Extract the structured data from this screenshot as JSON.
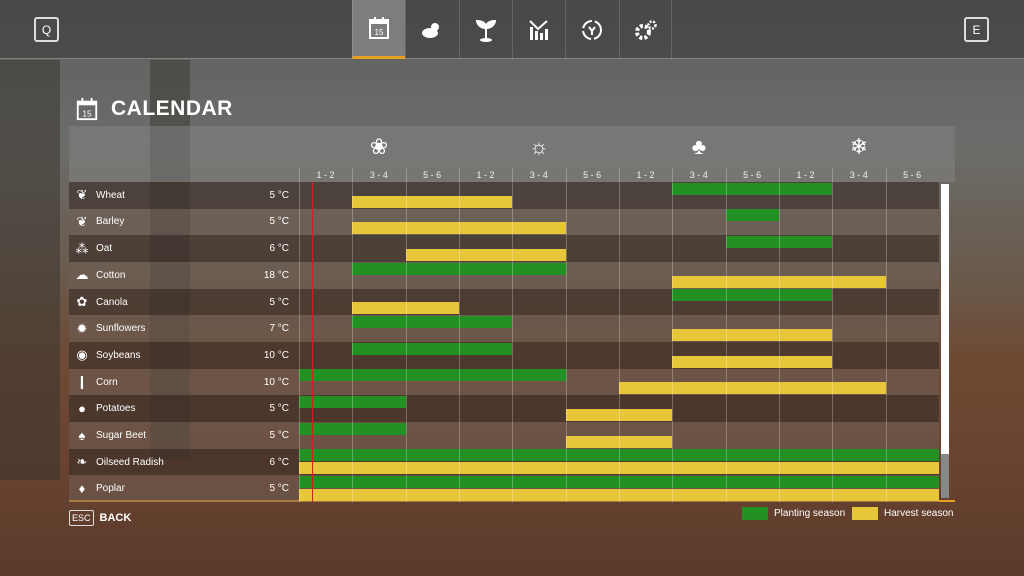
{
  "topbar": {
    "left_key": "Q",
    "right_key": "E",
    "tabs": [
      {
        "name": "calendar",
        "day": "15",
        "active": true
      },
      {
        "name": "weather"
      },
      {
        "name": "crops"
      },
      {
        "name": "prices"
      },
      {
        "name": "cycle"
      },
      {
        "name": "settings"
      }
    ]
  },
  "title": {
    "label": "CALENDAR",
    "day": "15"
  },
  "seasons": [
    {
      "name": "spring",
      "icon": "❀"
    },
    {
      "name": "summer",
      "icon": "☼"
    },
    {
      "name": "autumn",
      "icon": "♣"
    },
    {
      "name": "winter",
      "icon": "❄"
    }
  ],
  "periods": [
    "1 - 2",
    "3 - 4",
    "5 - 6",
    "1 - 2",
    "3 - 4",
    "5 - 6",
    "1 - 2",
    "3 - 4",
    "5 - 6",
    "1 - 2",
    "3 - 4",
    "5 - 6"
  ],
  "current_period": 0.25,
  "colors": {
    "planting": "#229022",
    "harvest": "#e8c63a"
  },
  "crops": [
    {
      "name": "Wheat",
      "temp": "5 °C",
      "icon": "❦",
      "planting": [
        [
          7,
          10
        ]
      ],
      "harvest": [
        [
          1,
          4
        ]
      ]
    },
    {
      "name": "Barley",
      "temp": "5 °C",
      "icon": "❦",
      "planting": [
        [
          8,
          9
        ]
      ],
      "harvest": [
        [
          1,
          5
        ]
      ]
    },
    {
      "name": "Oat",
      "temp": "6 °C",
      "icon": "⁂",
      "planting": [
        [
          8,
          10
        ]
      ],
      "harvest": [
        [
          2,
          5
        ]
      ]
    },
    {
      "name": "Cotton",
      "temp": "18 °C",
      "icon": "☁",
      "planting": [
        [
          1,
          5
        ]
      ],
      "harvest": [
        [
          7,
          11
        ]
      ]
    },
    {
      "name": "Canola",
      "temp": "5 °C",
      "icon": "✿",
      "planting": [
        [
          7,
          10
        ]
      ],
      "harvest": [
        [
          1,
          3
        ]
      ]
    },
    {
      "name": "Sunflowers",
      "temp": "7 °C",
      "icon": "✹",
      "planting": [
        [
          1,
          4
        ]
      ],
      "harvest": [
        [
          7,
          10
        ]
      ]
    },
    {
      "name": "Soybeans",
      "temp": "10 °C",
      "icon": "◉",
      "planting": [
        [
          1,
          4
        ]
      ],
      "harvest": [
        [
          7,
          10
        ]
      ]
    },
    {
      "name": "Corn",
      "temp": "10 °C",
      "icon": "❙",
      "planting": [
        [
          0,
          5
        ]
      ],
      "harvest": [
        [
          6,
          11
        ]
      ]
    },
    {
      "name": "Potatoes",
      "temp": "5 °C",
      "icon": "●",
      "planting": [
        [
          0,
          2
        ]
      ],
      "harvest": [
        [
          5,
          7
        ]
      ]
    },
    {
      "name": "Sugar Beet",
      "temp": "5 °C",
      "icon": "♠",
      "planting": [
        [
          0,
          2
        ]
      ],
      "harvest": [
        [
          5,
          7
        ]
      ]
    },
    {
      "name": "Oilseed Radish",
      "temp": "6 °C",
      "icon": "❧",
      "planting": [
        [
          0,
          12
        ]
      ],
      "harvest": [
        [
          0,
          12
        ]
      ]
    },
    {
      "name": "Poplar",
      "temp": "5 °C",
      "icon": "♦",
      "planting": [
        [
          0,
          12
        ]
      ],
      "harvest": [
        [
          0,
          12
        ]
      ]
    }
  ],
  "legend": {
    "planting": "Planting season",
    "harvest": "Harvest season"
  },
  "back": {
    "key": "ESC",
    "label": "BACK"
  }
}
